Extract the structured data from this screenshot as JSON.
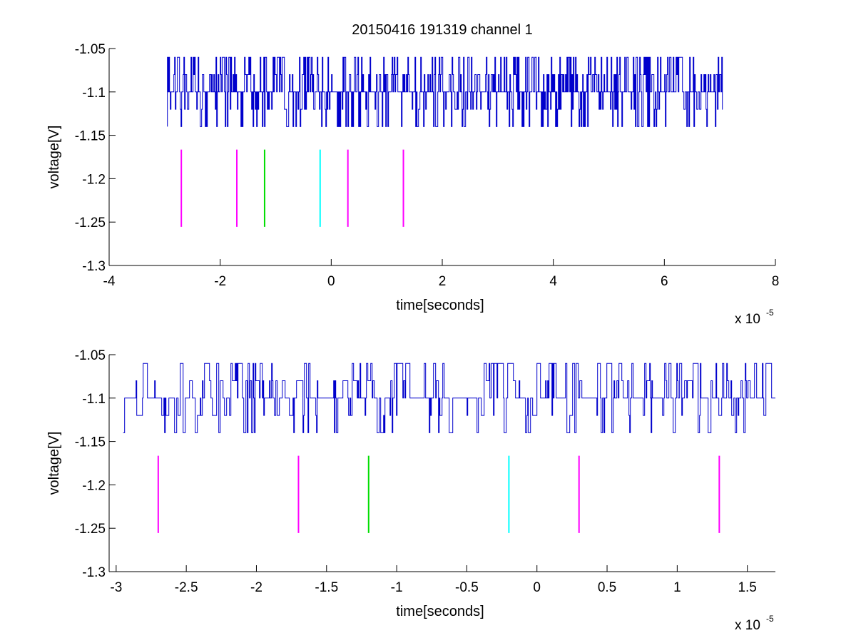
{
  "figure": {
    "title": "20150416 191319 channel 1"
  },
  "colors": {
    "signal": "#0000cc",
    "magenta": "#ff00ff",
    "green": "#00dd00",
    "cyan": "#00ffff",
    "axis": "#000000"
  },
  "chart_data": [
    {
      "type": "line",
      "title": "20150416 191319 channel 1",
      "xlabel": "time[seconds]",
      "ylabel": "voltage[V]",
      "x_multiplier": "x 10",
      "x_exponent": "-5",
      "xlim": [
        -4e-05,
        8e-05
      ],
      "ylim": [
        -1.3,
        -1.05
      ],
      "xticks": [
        -4e-05,
        -2e-05,
        0,
        2e-05,
        4e-05,
        6e-05,
        8e-05
      ],
      "xtick_labels": [
        "-4",
        "-2",
        "0",
        "2",
        "4",
        "6",
        "8"
      ],
      "yticks": [
        -1.3,
        -1.25,
        -1.2,
        -1.15,
        -1.1,
        -1.05
      ],
      "ytick_labels": [
        "-1.3",
        "-1.25",
        "-1.2",
        "-1.15",
        "-1.1",
        "-1.05"
      ],
      "grid": false,
      "series": [
        {
          "values_note": "",
          "x_start": -2.95e-05,
          "x_end": 7.05e-05,
          "y_levels": [
            -1.14,
            -1.12,
            -1.1,
            -1.08,
            -1.06
          ],
          "baseline": -1.1,
          "color": "#0000cc"
        }
      ],
      "markers": [
        {
          "x": -2.7e-05,
          "y_top": -1.1665,
          "y_bottom": -1.2555,
          "color": "#ff00ff"
        },
        {
          "x": -1.7e-05,
          "y_top": -1.1665,
          "y_bottom": -1.2555,
          "color": "#ff00ff"
        },
        {
          "x": -1.2e-05,
          "y_top": -1.1665,
          "y_bottom": -1.2555,
          "color": "#00dd00"
        },
        {
          "x": -2e-06,
          "y_top": -1.1665,
          "y_bottom": -1.2555,
          "color": "#00ffff"
        },
        {
          "x": 3e-06,
          "y_top": -1.1665,
          "y_bottom": -1.2555,
          "color": "#ff00ff"
        },
        {
          "x": 1.3e-05,
          "y_top": -1.1665,
          "y_bottom": -1.2555,
          "color": "#ff00ff"
        }
      ]
    },
    {
      "type": "line",
      "title": "",
      "xlabel": "time[seconds]",
      "ylabel": "voltage[V]",
      "x_multiplier": "x 10",
      "x_exponent": "-5",
      "xlim": [
        -3.05e-05,
        1.7e-05
      ],
      "ylim": [
        -1.3,
        -1.05
      ],
      "xticks": [
        -3e-05,
        -2.5e-05,
        -2e-05,
        -1.5e-05,
        -1e-05,
        -5e-06,
        0,
        5e-06,
        1e-05,
        1.5e-05
      ],
      "xtick_labels": [
        "-3",
        "-2.5",
        "-2",
        "-1.5",
        "-1",
        "-0.5",
        "0",
        "0.5",
        "1",
        "1.5"
      ],
      "yticks": [
        -1.3,
        -1.25,
        -1.2,
        -1.15,
        -1.1,
        -1.05
      ],
      "ytick_labels": [
        "-1.3",
        "-1.25",
        "-1.2",
        "-1.15",
        "-1.1",
        "-1.05"
      ],
      "grid": false,
      "series": [
        {
          "values_note": "",
          "x_start": -2.95e-05,
          "x_end": 1.7e-05,
          "y_levels": [
            -1.14,
            -1.12,
            -1.1,
            -1.08,
            -1.06
          ],
          "baseline": -1.1,
          "color": "#0000cc"
        }
      ],
      "markers": [
        {
          "x": -2.7e-05,
          "y_top": -1.1665,
          "y_bottom": -1.2555,
          "color": "#ff00ff"
        },
        {
          "x": -1.7e-05,
          "y_top": -1.1665,
          "y_bottom": -1.2555,
          "color": "#ff00ff"
        },
        {
          "x": -1.2e-05,
          "y_top": -1.1665,
          "y_bottom": -1.2555,
          "color": "#00dd00"
        },
        {
          "x": -2e-06,
          "y_top": -1.1665,
          "y_bottom": -1.2555,
          "color": "#00ffff"
        },
        {
          "x": 3e-06,
          "y_top": -1.1665,
          "y_bottom": -1.2555,
          "color": "#ff00ff"
        },
        {
          "x": 1.3e-05,
          "y_top": -1.1665,
          "y_bottom": -1.2555,
          "color": "#ff00ff"
        }
      ]
    }
  ]
}
